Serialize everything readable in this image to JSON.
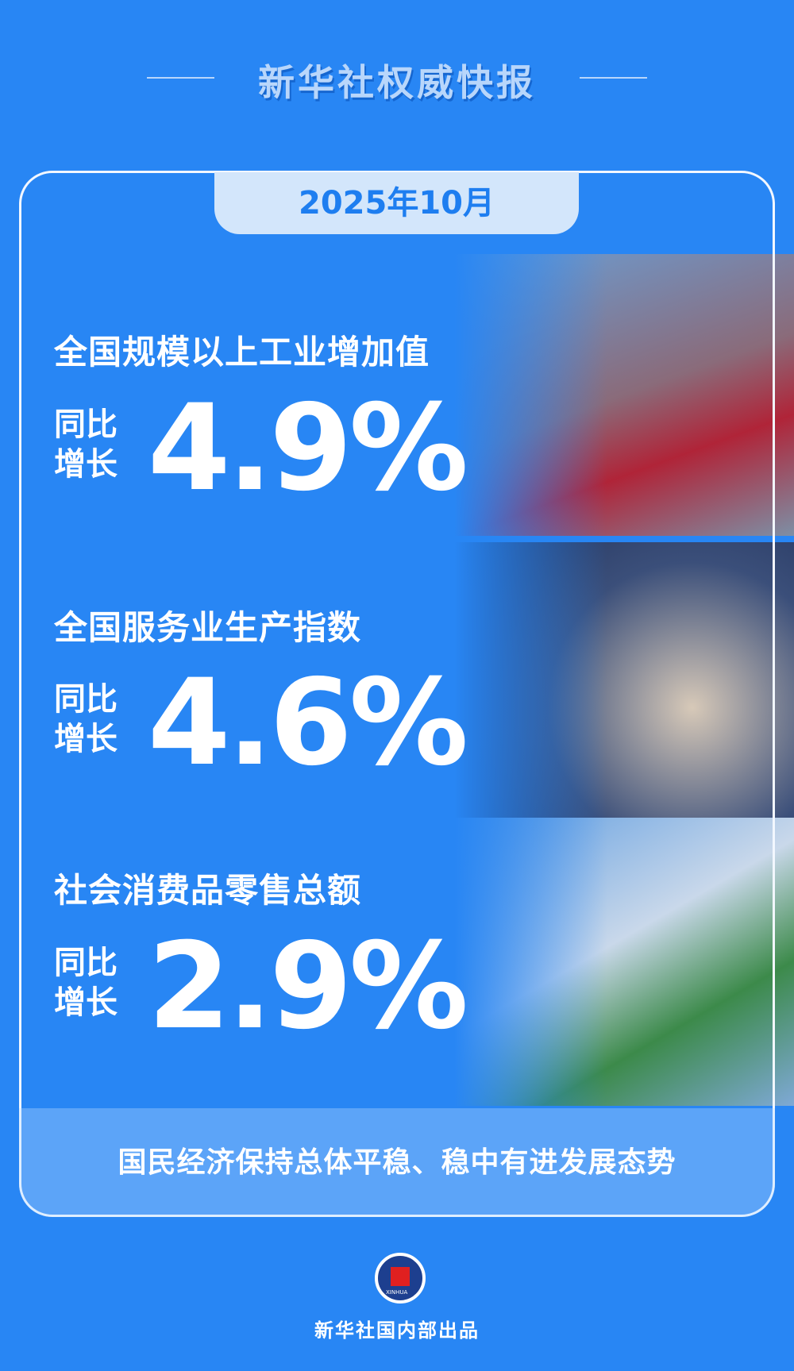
{
  "header": {
    "title": "新华社权威快报"
  },
  "date_tab": "2025年10月",
  "sections": [
    {
      "heading": "全国规模以上工业增加值",
      "label_line1": "同比",
      "label_line2": "增长",
      "value": "4.9%"
    },
    {
      "heading": "全国服务业生产指数",
      "label_line1": "同比",
      "label_line2": "增长",
      "value": "4.6%"
    },
    {
      "heading": "社会消费品零售总额",
      "label_line1": "同比",
      "label_line2": "增长",
      "value": "2.9%"
    }
  ],
  "banner": "国民经济保持总体平稳、稳中有进发展态势",
  "logo": {
    "text": "XINHUA"
  },
  "footer": "新华社国内部出品",
  "colors": {
    "background": "#2886f4",
    "tab": "#d3e6fb",
    "accent": "#1e7ef0"
  }
}
